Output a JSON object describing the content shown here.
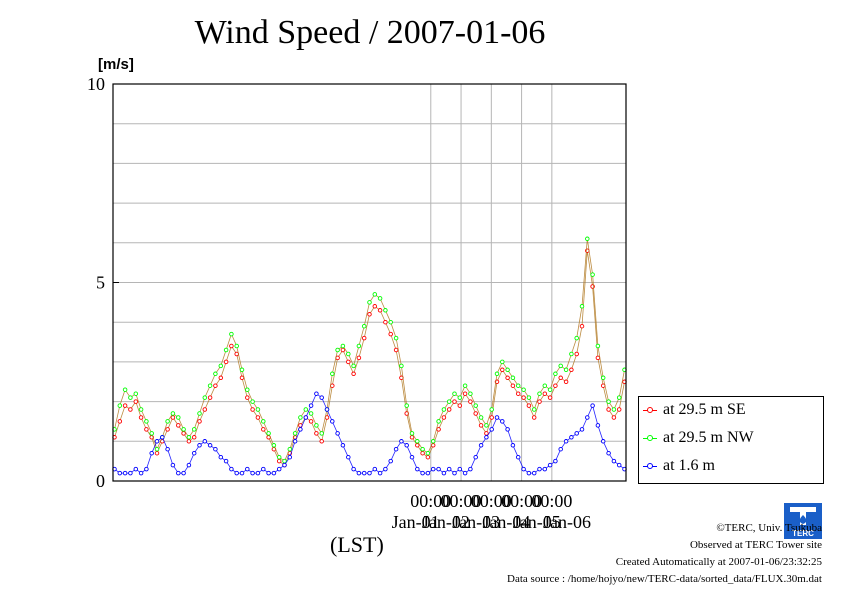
{
  "title": "Wind Speed / 2007-01-06",
  "y_unit": "[m/s]",
  "x_unit_label": "(LST)",
  "footer": {
    "copyright": "©TERC, Univ. Tsukuba",
    "site": "Observed at TERC Tower site",
    "created": "Created Automatically at 2007-01-06/23:32:25",
    "source": "Data source : /home/hojyo/new/TERC-data/sorted_data/FLUX.30m.dat"
  },
  "logo_text": "TERC",
  "chart_data": {
    "type": "line",
    "title": "Wind Speed / 2007-01-06",
    "ylabel": "[m/s]",
    "xlabel": "(LST)",
    "ylim": [
      0,
      10
    ],
    "yticks": [
      0,
      5,
      10
    ],
    "xlim": [
      -10.5,
      6.45
    ],
    "x_unit": "days relative to Jan-01 00:00",
    "xtick_labels": [
      "00:00",
      "00:00",
      "00:00",
      "00:00",
      "00:00"
    ],
    "xtick_days": [
      0,
      1,
      2,
      3,
      4
    ],
    "day_labels": [
      "Jan-01",
      "Jan-02",
      "Jan-03",
      "Jan-04",
      "Jan-05",
      "Jan-06"
    ],
    "grid": true,
    "legend_position": "right",
    "series": [
      {
        "name": "at 29.5 m SE",
        "color": "#ff0000",
        "values": [
          1.1,
          1.5,
          1.9,
          1.8,
          2.0,
          1.6,
          1.3,
          1.1,
          0.7,
          1.0,
          1.3,
          1.6,
          1.4,
          1.2,
          1.0,
          1.1,
          1.5,
          1.8,
          2.1,
          2.4,
          2.6,
          3.0,
          3.4,
          3.2,
          2.6,
          2.1,
          1.8,
          1.6,
          1.3,
          1.1,
          0.8,
          0.5,
          0.4,
          0.7,
          1.1,
          1.4,
          1.6,
          1.5,
          1.2,
          1.0,
          1.6,
          2.4,
          3.1,
          3.3,
          3.0,
          2.7,
          3.1,
          3.6,
          4.2,
          4.4,
          4.3,
          4.0,
          3.7,
          3.3,
          2.6,
          1.7,
          1.1,
          0.9,
          0.7,
          0.6,
          0.9,
          1.3,
          1.6,
          1.8,
          2.0,
          1.9,
          2.2,
          2.0,
          1.7,
          1.4,
          1.2,
          1.6,
          2.5,
          2.8,
          2.6,
          2.4,
          2.2,
          2.1,
          1.9,
          1.6,
          2.0,
          2.2,
          2.1,
          2.4,
          2.6,
          2.5,
          2.8,
          3.2,
          3.9,
          5.8,
          4.9,
          3.1,
          2.4,
          1.8,
          1.6,
          1.8,
          2.5
        ]
      },
      {
        "name": "at 29.5 m NW",
        "color": "#00ff00",
        "values": [
          1.3,
          1.9,
          2.3,
          2.1,
          2.2,
          1.8,
          1.5,
          1.2,
          0.8,
          1.1,
          1.5,
          1.7,
          1.6,
          1.3,
          1.1,
          1.3,
          1.7,
          2.1,
          2.4,
          2.7,
          2.9,
          3.3,
          3.7,
          3.4,
          2.8,
          2.3,
          2.0,
          1.8,
          1.5,
          1.2,
          0.9,
          0.6,
          0.5,
          0.8,
          1.2,
          1.6,
          1.8,
          1.7,
          1.4,
          1.2,
          1.8,
          2.7,
          3.3,
          3.4,
          3.2,
          2.9,
          3.4,
          3.9,
          4.5,
          4.7,
          4.6,
          4.3,
          4.0,
          3.6,
          2.9,
          1.9,
          1.2,
          1.0,
          0.8,
          0.7,
          1.0,
          1.5,
          1.8,
          2.0,
          2.2,
          2.1,
          2.4,
          2.2,
          1.9,
          1.6,
          1.4,
          1.8,
          2.7,
          3.0,
          2.8,
          2.6,
          2.4,
          2.3,
          2.1,
          1.8,
          2.2,
          2.4,
          2.3,
          2.7,
          2.9,
          2.8,
          3.2,
          3.6,
          4.4,
          6.1,
          5.2,
          3.4,
          2.6,
          2.0,
          1.8,
          2.1,
          2.8
        ]
      },
      {
        "name": "at 1.6 m",
        "color": "#0000ff",
        "values": [
          0.3,
          0.2,
          0.2,
          0.2,
          0.3,
          0.2,
          0.3,
          0.7,
          1.0,
          1.1,
          0.8,
          0.4,
          0.2,
          0.2,
          0.4,
          0.7,
          0.9,
          1.0,
          0.9,
          0.8,
          0.6,
          0.5,
          0.3,
          0.2,
          0.2,
          0.3,
          0.2,
          0.2,
          0.3,
          0.2,
          0.2,
          0.3,
          0.4,
          0.6,
          1.0,
          1.3,
          1.6,
          1.9,
          2.2,
          2.1,
          1.8,
          1.5,
          1.2,
          0.9,
          0.6,
          0.3,
          0.2,
          0.2,
          0.2,
          0.3,
          0.2,
          0.3,
          0.5,
          0.8,
          1.0,
          0.9,
          0.6,
          0.3,
          0.2,
          0.2,
          0.3,
          0.3,
          0.2,
          0.3,
          0.2,
          0.3,
          0.2,
          0.3,
          0.6,
          0.9,
          1.1,
          1.3,
          1.6,
          1.5,
          1.3,
          0.9,
          0.6,
          0.3,
          0.2,
          0.2,
          0.3,
          0.3,
          0.4,
          0.5,
          0.8,
          1.0,
          1.1,
          1.2,
          1.3,
          1.6,
          1.9,
          1.4,
          1.0,
          0.7,
          0.5,
          0.4,
          0.3
        ]
      }
    ]
  }
}
